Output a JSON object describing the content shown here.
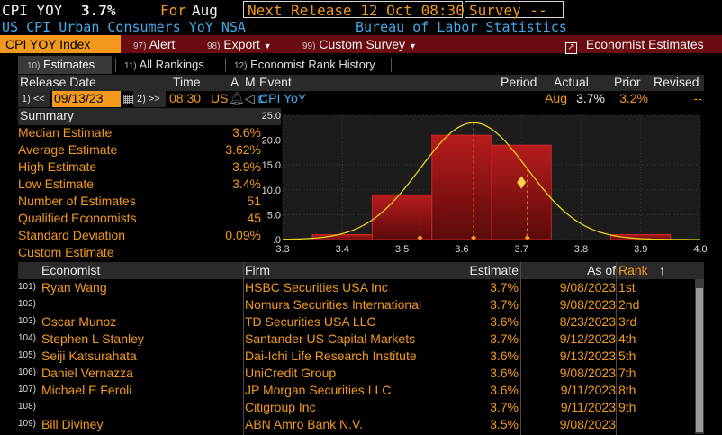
{
  "header": {
    "ticker": "CPI YOY",
    "value": "3.7%",
    "for_label": "For",
    "for_value": "Aug",
    "next_release": "Next Release 12 Oct 08:30",
    "survey": "Survey --",
    "description": "US CPI Urban Consumers YoY NSA",
    "source": "Bureau of Labor Statistics"
  },
  "menubar": {
    "index_label": "CPI YOY Index",
    "items": [
      {
        "num": "97)",
        "label": "Alert"
      },
      {
        "num": "98)",
        "label": "Export"
      },
      {
        "num": "99)",
        "label": "Custom Survey"
      }
    ],
    "economist_estimates": "Economist Estimates"
  },
  "tabs": [
    {
      "num": "10)",
      "label": "Estimates"
    },
    {
      "num": "11)",
      "label": "All Rankings"
    },
    {
      "num": "12)",
      "label": "Economist Rank History"
    }
  ],
  "release": {
    "headers": {
      "date": "Release Date",
      "time": "Time",
      "a": "A",
      "m": "M",
      "event": "Event",
      "period": "Period",
      "actual": "Actual",
      "prior": "Prior",
      "revised": "Revised"
    },
    "row": {
      "prev": "1) <<",
      "date": "09/13/23",
      "next": "2) >>",
      "time": "08:30",
      "country": "US",
      "event": "CPI YoY",
      "period": "Aug",
      "actual": "3.7%",
      "prior": "3.2%",
      "revised": "--"
    }
  },
  "summary": {
    "title": "Summary",
    "rows": [
      {
        "label": "Median Estimate",
        "value": "3.6%"
      },
      {
        "label": "Average Estimate",
        "value": "3.62%"
      },
      {
        "label": "High Estimate",
        "value": "3.9%"
      },
      {
        "label": "Low Estimate",
        "value": "3.4%"
      },
      {
        "label": "Number of Estimates",
        "value": "51"
      },
      {
        "label": "Qualified Economists",
        "value": "45"
      },
      {
        "label": "Standard Deviation",
        "value": "0.09%"
      },
      {
        "label": "Custom Estimate",
        "value": ""
      }
    ]
  },
  "chart_data": {
    "type": "bar",
    "title": "",
    "xlim": [
      3.3,
      4.0
    ],
    "ylim": [
      0,
      25
    ],
    "x_ticks": [
      "3.3",
      "3.4",
      "3.5",
      "3.6",
      "3.7",
      "3.8",
      "3.9",
      "4.0"
    ],
    "y_ticks": [
      "25.0",
      "20.0",
      "15.0",
      "10.0",
      "5.0",
      ".0"
    ],
    "bins": [
      {
        "x0": 3.35,
        "x1": 3.45,
        "value": 1
      },
      {
        "x0": 3.45,
        "x1": 3.55,
        "value": 9
      },
      {
        "x0": 3.55,
        "x1": 3.65,
        "value": 21
      },
      {
        "x0": 3.65,
        "x1": 3.75,
        "value": 19
      },
      {
        "x0": 3.75,
        "x1": 3.85,
        "value": 0
      },
      {
        "x0": 3.85,
        "x1": 3.95,
        "value": 1
      }
    ],
    "normal_curve": {
      "mean": 3.62,
      "stdev": 0.09,
      "peak": 23.5
    },
    "markers": [
      3.53,
      3.62,
      3.71
    ],
    "diamond": {
      "x": 3.7,
      "y": 11.5
    },
    "grid": true
  },
  "economists": {
    "headers": {
      "economist": "Economist",
      "firm": "Firm",
      "estimate": "Estimate",
      "asof": "As of",
      "rank": "Rank",
      "sort_icon": "↑"
    },
    "rows": [
      {
        "num": "101)",
        "name": "Ryan Wang",
        "firm": "HSBC Securities USA Inc",
        "estimate": "3.7%",
        "asof": "9/08/2023",
        "rank": "1st"
      },
      {
        "num": "102)",
        "name": "",
        "firm": "Nomura Securities International",
        "estimate": "3.7%",
        "asof": "9/08/2023",
        "rank": "2nd"
      },
      {
        "num": "103)",
        "name": "Oscar Munoz",
        "firm": "TD Securities USA LLC",
        "estimate": "3.6%",
        "asof": "8/23/2023",
        "rank": "3rd"
      },
      {
        "num": "104)",
        "name": "Stephen L Stanley",
        "firm": "Santander US Capital Markets",
        "estimate": "3.7%",
        "asof": "9/12/2023",
        "rank": "4th"
      },
      {
        "num": "105)",
        "name": "Seiji Katsurahata",
        "firm": "Dai-Ichi Life Research Institute",
        "estimate": "3.6%",
        "asof": "9/13/2023",
        "rank": "5th"
      },
      {
        "num": "106)",
        "name": "Daniel Vernazza",
        "firm": "UniCredit Group",
        "estimate": "3.6%",
        "asof": "9/08/2023",
        "rank": "7th"
      },
      {
        "num": "107)",
        "name": "Michael E Feroli",
        "firm": "JP Morgan Securities LLC",
        "estimate": "3.6%",
        "asof": "9/11/2023",
        "rank": "8th"
      },
      {
        "num": "108)",
        "name": "",
        "firm": "Citigroup Inc",
        "estimate": "3.7%",
        "asof": "9/11/2023",
        "rank": "9th"
      },
      {
        "num": "109)",
        "name": "Bill Diviney",
        "firm": "ABN Amro Bank N.V.",
        "estimate": "3.5%",
        "asof": "9/08/2023",
        "rank": ""
      }
    ]
  }
}
